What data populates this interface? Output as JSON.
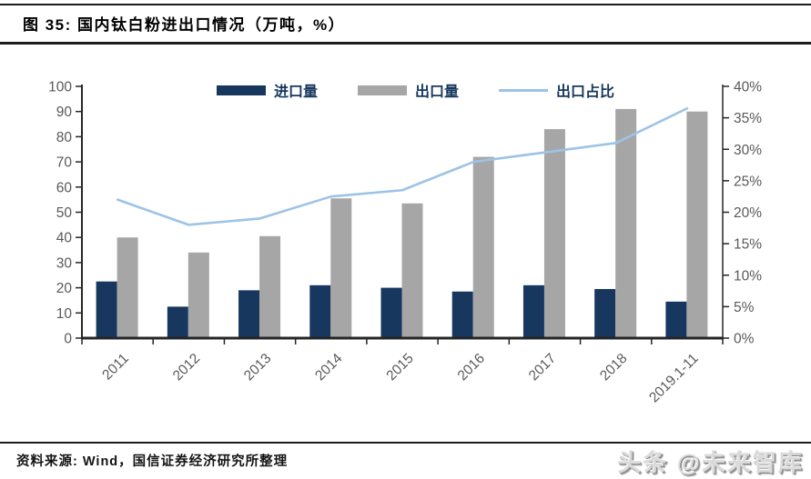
{
  "figure": {
    "title": "图 35:  国内钛白粉进出口情况（万吨，%）"
  },
  "footer": {
    "source": "资料来源: Wind，国信证券经济研究所整理",
    "watermark": "头条 @未来智库"
  },
  "colors": {
    "import_bar": "#17375E",
    "export_bar": "#A6A6A6",
    "ratio_line": "#9DC3E6",
    "axis": "#262626",
    "tick_label": "#595959",
    "legend_text": "#17375E"
  },
  "chart_data": {
    "type": "bar",
    "title": "国内钛白粉进出口情况（万吨，%）",
    "categories": [
      "2011",
      "2012",
      "2013",
      "2014",
      "2015",
      "2016",
      "2017",
      "2018",
      "2019.1-11"
    ],
    "series": [
      {
        "name": "进口量",
        "type": "bar",
        "axis": "left",
        "color": "#17375E",
        "values": [
          22.5,
          12.5,
          19,
          21,
          20,
          18.5,
          21,
          19.5,
          14.5
        ]
      },
      {
        "name": "出口量",
        "type": "bar",
        "axis": "left",
        "color": "#A6A6A6",
        "values": [
          40,
          34,
          40.5,
          55.5,
          53.5,
          72,
          83,
          91,
          90
        ]
      },
      {
        "name": "出口占比",
        "type": "line",
        "axis": "right",
        "color": "#9DC3E6",
        "values": [
          22,
          18,
          19,
          22.5,
          23.5,
          28,
          29.5,
          31,
          36.5
        ]
      }
    ],
    "left_axis": {
      "min": 0,
      "max": 100,
      "step": 10,
      "tick_labels": [
        "0",
        "10",
        "20",
        "30",
        "40",
        "50",
        "60",
        "70",
        "80",
        "90",
        "100"
      ]
    },
    "right_axis": {
      "min": 0,
      "max": 40,
      "step": 5,
      "tick_labels": [
        "0%",
        "5%",
        "10%",
        "15%",
        "20%",
        "25%",
        "30%",
        "35%",
        "40%"
      ]
    },
    "grid": false,
    "legend_position": "top"
  }
}
